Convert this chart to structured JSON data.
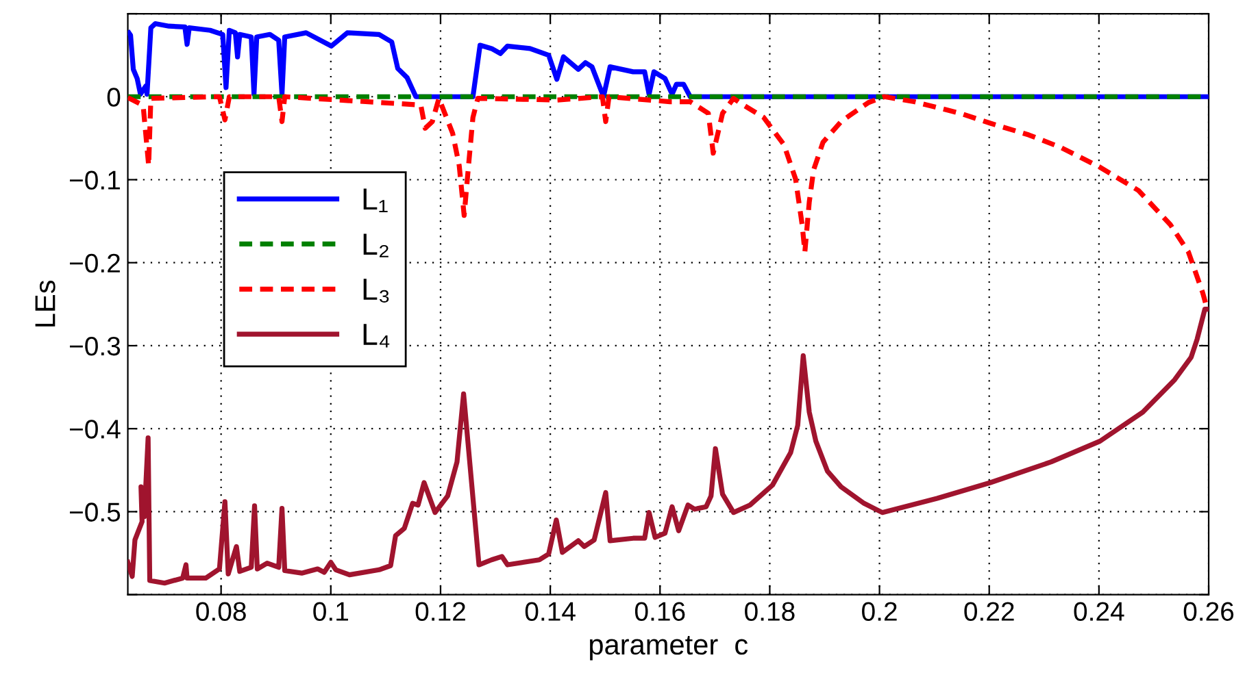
{
  "chart_data": {
    "type": "line",
    "xlabel": "parameter  c",
    "ylabel": "LEs",
    "xlim": [
      0.063,
      0.26
    ],
    "ylim": [
      -0.6,
      0.1
    ],
    "xticks": [
      0.08,
      0.1,
      0.12,
      0.14,
      0.16,
      0.18,
      0.2,
      0.22,
      0.24,
      0.26
    ],
    "yticks": [
      {
        "value": -0.6,
        "label": null
      },
      -0.5,
      -0.4,
      -0.3,
      -0.2,
      -0.1,
      0,
      {
        "value": 0.1,
        "label": null
      }
    ],
    "grid": true,
    "legend": "left",
    "line_style": "solid",
    "marker": "none",
    "series": [
      {
        "name": "L₁",
        "color": "#0000ff",
        "x": [
          0.0632,
          0.0635,
          0.064,
          0.0647,
          0.0653,
          0.0663,
          0.0665,
          0.0672,
          0.068,
          0.0705,
          0.0734,
          0.0738,
          0.0742,
          0.078,
          0.0803,
          0.0809,
          0.0815,
          0.0826,
          0.083,
          0.0834,
          0.0855,
          0.086,
          0.0865,
          0.0889,
          0.0905,
          0.0911,
          0.0916,
          0.0955,
          0.1001,
          0.103,
          0.1088,
          0.1111,
          0.1122,
          0.1139,
          0.1155,
          0.1259,
          0.1272,
          0.1293,
          0.1309,
          0.1322,
          0.1363,
          0.1397,
          0.1412,
          0.1424,
          0.1451,
          0.1464,
          0.1476,
          0.1497,
          0.1509,
          0.1551,
          0.1572,
          0.158,
          0.1589,
          0.1609,
          0.1622,
          0.163,
          0.1643,
          0.1655,
          0.26
        ],
        "values": [
          0.077,
          0.074,
          0.033,
          0.022,
          0.003,
          0.013,
          0.003,
          0.083,
          0.088,
          0.085,
          0.084,
          0.063,
          0.083,
          0.08,
          0.075,
          0.011,
          0.08,
          0.077,
          0.048,
          0.075,
          0.072,
          0.003,
          0.072,
          0.075,
          0.068,
          0.003,
          0.072,
          0.077,
          0.061,
          0.077,
          0.075,
          0.066,
          0.034,
          0.023,
          0,
          0,
          0.062,
          0.058,
          0.052,
          0.061,
          0.058,
          0.05,
          0.021,
          0.048,
          0.033,
          0.041,
          0.036,
          0,
          0.036,
          0.03,
          0.03,
          0.003,
          0.03,
          0.022,
          0.003,
          0.015,
          0.015,
          0,
          0
        ]
      },
      {
        "name": "L₂",
        "color": "#008000",
        "line_style": "dashed",
        "x": [
          0.063,
          0.26
        ],
        "values": [
          0,
          0
        ]
      },
      {
        "name": "L₃",
        "color": "#ff0000",
        "line_style": "dashed",
        "x": [
          0.063,
          0.0651,
          0.0658,
          0.0668,
          0.0672,
          0.0797,
          0.0807,
          0.0815,
          0.0905,
          0.0911,
          0.0916,
          0.1164,
          0.1172,
          0.1185,
          0.1197,
          0.1222,
          0.1234,
          0.1243,
          0.1251,
          0.1259,
          0.1268,
          0.1413,
          0.1495,
          0.1501,
          0.1507,
          0.158,
          0.1618,
          0.1655,
          0.1688,
          0.1697,
          0.1714,
          0.1734,
          0.1747,
          0.1789,
          0.1826,
          0.1847,
          0.1859,
          0.1864,
          0.1872,
          0.188,
          0.1897,
          0.193,
          0.1947,
          0.198,
          0.2009,
          0.2063,
          0.2147,
          0.2202,
          0.2272,
          0.233,
          0.2402,
          0.2472,
          0.253,
          0.2563,
          0.2589,
          0.2597
        ],
        "values": [
          -0.001,
          -0.008,
          -0.011,
          -0.083,
          -0.002,
          0,
          -0.028,
          0,
          0,
          -0.03,
          0,
          -0.01,
          -0.038,
          -0.03,
          -0.002,
          -0.044,
          -0.083,
          -0.143,
          -0.083,
          -0.025,
          -0.002,
          -0.004,
          0,
          -0.03,
          0,
          -0.004,
          -0.006,
          -0.006,
          -0.02,
          -0.068,
          -0.02,
          -0.002,
          -0.008,
          -0.025,
          -0.058,
          -0.099,
          -0.154,
          -0.187,
          -0.127,
          -0.088,
          -0.055,
          -0.03,
          -0.022,
          -0.007,
          0,
          -0.006,
          -0.02,
          -0.032,
          -0.046,
          -0.061,
          -0.085,
          -0.113,
          -0.154,
          -0.187,
          -0.236,
          -0.255
        ]
      },
      {
        "name": "L₄",
        "color": "#a0142e",
        "x": [
          0.063,
          0.0638,
          0.0643,
          0.0656,
          0.0654,
          0.066,
          0.0667,
          0.067,
          0.0697,
          0.073,
          0.0736,
          0.0738,
          0.0772,
          0.0797,
          0.0807,
          0.0813,
          0.0828,
          0.0834,
          0.0855,
          0.0861,
          0.0866,
          0.0884,
          0.0905,
          0.0911,
          0.0916,
          0.0947,
          0.0976,
          0.0988,
          0.1,
          0.1009,
          0.1034,
          0.1088,
          0.1109,
          0.1118,
          0.1134,
          0.1149,
          0.1159,
          0.117,
          0.119,
          0.1213,
          0.123,
          0.1242,
          0.127,
          0.1293,
          0.1312,
          0.1322,
          0.138,
          0.1397,
          0.1411,
          0.1422,
          0.1451,
          0.1462,
          0.148,
          0.1501,
          0.1509,
          0.1551,
          0.1572,
          0.158,
          0.1591,
          0.1609,
          0.1622,
          0.1634,
          0.1651,
          0.1663,
          0.1684,
          0.1693,
          0.1701,
          0.1714,
          0.1734,
          0.1764,
          0.1805,
          0.1838,
          0.1851,
          0.1861,
          0.1872,
          0.1884,
          0.1905,
          0.193,
          0.1972,
          0.2005,
          0.2105,
          0.2202,
          0.2313,
          0.2402,
          0.248,
          0.2538,
          0.2568,
          0.2579,
          0.2593,
          0.26
        ],
        "values": [
          -0.561,
          -0.578,
          -0.534,
          -0.512,
          -0.47,
          -0.506,
          -0.411,
          -0.583,
          -0.586,
          -0.58,
          -0.564,
          -0.58,
          -0.58,
          -0.569,
          -0.488,
          -0.575,
          -0.542,
          -0.572,
          -0.567,
          -0.493,
          -0.569,
          -0.562,
          -0.567,
          -0.496,
          -0.571,
          -0.574,
          -0.569,
          -0.573,
          -0.561,
          -0.57,
          -0.576,
          -0.57,
          -0.565,
          -0.529,
          -0.52,
          -0.49,
          -0.492,
          -0.465,
          -0.501,
          -0.481,
          -0.44,
          -0.358,
          -0.564,
          -0.558,
          -0.554,
          -0.564,
          -0.558,
          -0.551,
          -0.51,
          -0.549,
          -0.535,
          -0.542,
          -0.534,
          -0.477,
          -0.535,
          -0.532,
          -0.532,
          -0.501,
          -0.531,
          -0.526,
          -0.494,
          -0.523,
          -0.492,
          -0.497,
          -0.494,
          -0.481,
          -0.424,
          -0.479,
          -0.501,
          -0.492,
          -0.468,
          -0.429,
          -0.396,
          -0.312,
          -0.38,
          -0.415,
          -0.451,
          -0.47,
          -0.49,
          -0.501,
          -0.484,
          -0.465,
          -0.44,
          -0.415,
          -0.38,
          -0.341,
          -0.314,
          -0.292,
          -0.256,
          -0.256
        ]
      }
    ]
  }
}
